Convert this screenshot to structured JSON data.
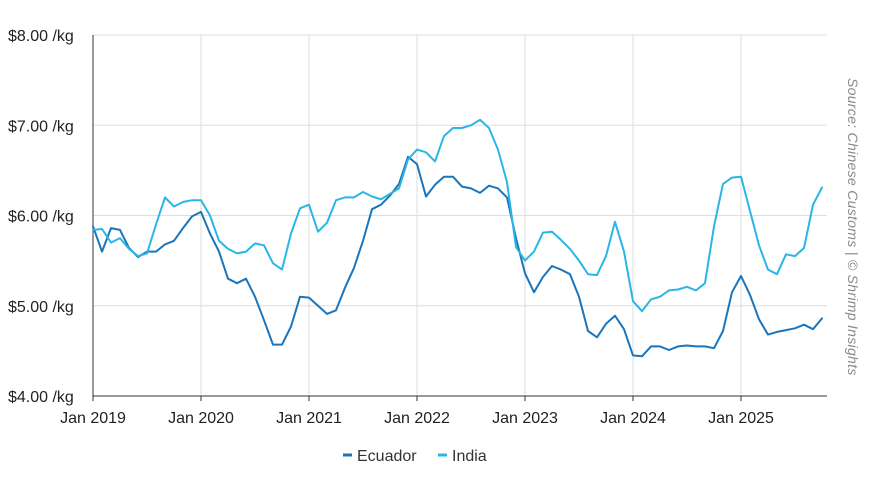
{
  "chart_data": {
    "type": "line",
    "x_start": "Jan 2019",
    "x_step": "month",
    "x_ticks": [
      "Jan 2019",
      "Jan 2020",
      "Jan 2021",
      "Jan 2022",
      "Jan 2023",
      "Jan 2024",
      "Jan 2025"
    ],
    "y_ticks": [
      "$4.00 /kg",
      "$5.00 /kg",
      "$6.00 /kg",
      "$7.00 /kg",
      "$8.00 /kg"
    ],
    "ylim": [
      4,
      8
    ],
    "grid": true,
    "legend_position": "bottom-center",
    "source": "Source: Chinese Customs | © Shrimp Insights",
    "series": [
      {
        "name": "Ecuador",
        "color": "#1b75bb",
        "values": [
          5.88,
          5.6,
          5.86,
          5.84,
          5.64,
          5.54,
          5.6,
          5.6,
          5.68,
          5.72,
          5.86,
          5.99,
          6.04,
          5.8,
          5.6,
          5.3,
          5.25,
          5.3,
          5.1,
          4.84,
          4.57,
          4.57,
          4.77,
          5.1,
          5.09,
          5.0,
          4.91,
          4.95,
          5.2,
          5.42,
          5.72,
          6.07,
          6.12,
          6.22,
          6.35,
          6.65,
          6.57,
          6.21,
          6.34,
          6.43,
          6.43,
          6.32,
          6.3,
          6.25,
          6.33,
          6.3,
          6.2,
          5.75,
          5.36,
          5.15,
          5.32,
          5.44,
          5.4,
          5.35,
          5.1,
          4.72,
          4.65,
          4.8,
          4.89,
          4.74,
          4.45,
          4.44,
          4.55,
          4.55,
          4.51,
          4.55,
          4.56,
          4.55,
          4.55,
          4.53,
          4.72,
          5.15,
          5.33,
          5.12,
          4.85,
          4.68,
          4.71,
          4.73,
          4.75,
          4.79,
          4.74,
          4.86
        ]
      },
      {
        "name": "India",
        "color": "#29b6e6",
        "values": [
          5.84,
          5.85,
          5.7,
          5.75,
          5.63,
          5.55,
          5.58,
          5.9,
          6.2,
          6.1,
          6.15,
          6.17,
          6.17,
          6.0,
          5.72,
          5.63,
          5.58,
          5.6,
          5.69,
          5.67,
          5.47,
          5.4,
          5.8,
          6.08,
          6.12,
          5.82,
          5.92,
          6.17,
          6.2,
          6.2,
          6.26,
          6.21,
          6.18,
          6.24,
          6.3,
          6.62,
          6.73,
          6.7,
          6.6,
          6.88,
          6.97,
          6.97,
          7.0,
          7.06,
          6.97,
          6.73,
          6.37,
          5.65,
          5.5,
          5.6,
          5.81,
          5.82,
          5.73,
          5.63,
          5.5,
          5.35,
          5.34,
          5.55,
          5.93,
          5.6,
          5.05,
          4.94,
          5.07,
          5.1,
          5.17,
          5.18,
          5.21,
          5.17,
          5.25,
          5.88,
          6.35,
          6.42,
          6.43,
          6.05,
          5.67,
          5.4,
          5.35,
          5.57,
          5.55,
          5.64,
          6.12,
          6.31
        ]
      }
    ]
  }
}
